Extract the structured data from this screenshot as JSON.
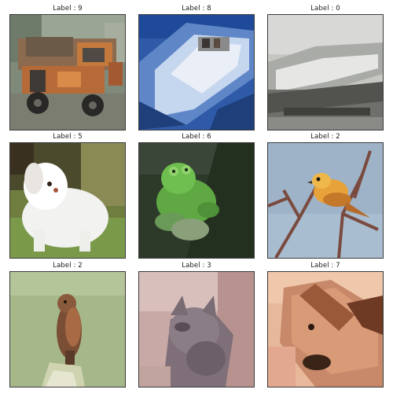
{
  "tiles": [
    {
      "label": "Label : 9",
      "subject": "truck"
    },
    {
      "label": "Label : 8",
      "subject": "ship"
    },
    {
      "label": "Label : 0",
      "subject": "airplane"
    },
    {
      "label": "Label : 5",
      "subject": "dog"
    },
    {
      "label": "Label : 6",
      "subject": "frog"
    },
    {
      "label": "Label : 2",
      "subject": "bird"
    },
    {
      "label": "Label : 2",
      "subject": "bird"
    },
    {
      "label": "Label : 3",
      "subject": "cat"
    },
    {
      "label": "Label : 7",
      "subject": "horse"
    }
  ]
}
